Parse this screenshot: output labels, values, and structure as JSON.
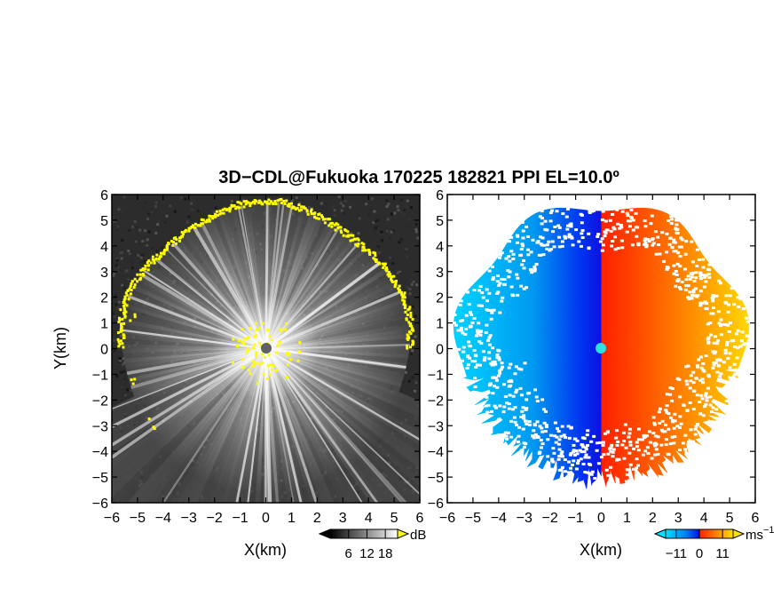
{
  "chart_data": [
    {
      "id": "reflectivity",
      "type": "heatmap",
      "xlabel": "X(km)",
      "ylabel": "Y(km)",
      "xlim": [
        -6,
        6
      ],
      "ylim": [
        -6,
        6
      ],
      "xticks": [
        -6,
        -5,
        -4,
        -3,
        -2,
        -1,
        0,
        1,
        2,
        3,
        4,
        5,
        6
      ],
      "yticks": [
        -6,
        -5,
        -4,
        -3,
        -2,
        -1,
        0,
        1,
        2,
        3,
        4,
        5,
        6
      ],
      "colormap": "grayscale",
      "colorbar": {
        "ticks": [
          6,
          12,
          18
        ],
        "unit": "dB",
        "min": 0,
        "max": 22
      },
      "range_boundary_km": 5.6,
      "edge_color": "#ffff00",
      "center_color": "#606060"
    },
    {
      "id": "doppler_velocity",
      "type": "heatmap",
      "xlabel": "X(km)",
      "ylabel": "",
      "xlim": [
        -6,
        6
      ],
      "ylim": [
        -6,
        6
      ],
      "xticks": [
        -6,
        -5,
        -4,
        -3,
        -2,
        -1,
        0,
        1,
        2,
        3,
        4,
        5,
        6
      ],
      "yticks": [
        -6,
        -5,
        -4,
        -3,
        -2,
        -1,
        0,
        1,
        2,
        3,
        4,
        5,
        6
      ],
      "colormap": "blue-red diverging",
      "colorbar": {
        "ticks": [
          -11,
          0,
          11
        ],
        "unit_base": "ms",
        "unit_exp": "−1",
        "min": -16,
        "max": 16
      },
      "range_boundary_km": 5.6,
      "center_color": "#2ee0e0"
    }
  ],
  "title": "3D−CDL@Fukuoka 170225 182821 PPI EL=10.0º"
}
